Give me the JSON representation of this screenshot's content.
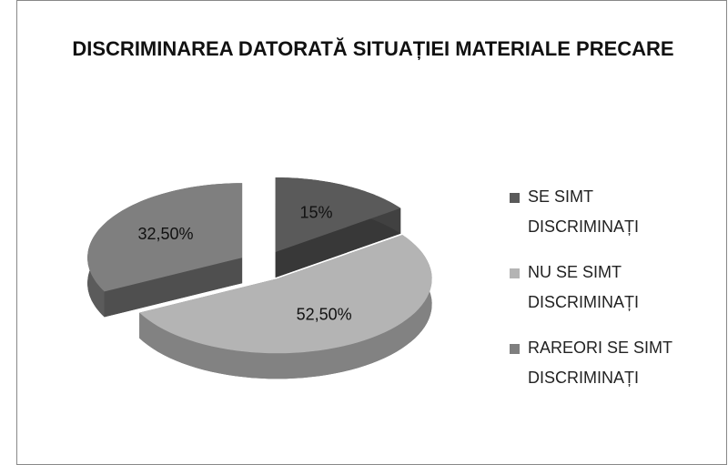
{
  "chart_data": {
    "type": "pie3d",
    "title": "DISCRIMINAREA DATORATĂ SITUAȚIEI MATERIALE PRECARE",
    "categories": [
      "SE SIMT DISCRIMINAȚI",
      "NU SE SIMT DISCRIMINAȚI",
      "RAREORI SE SIMT DISCRIMINAȚI"
    ],
    "values": [
      15,
      52.5,
      32.5
    ],
    "value_labels": [
      "15%",
      "52,50%",
      "32,50%"
    ],
    "colors": [
      "#5a5a5a",
      "#b4b4b4",
      "#7f7f7f"
    ],
    "legend": "right"
  }
}
